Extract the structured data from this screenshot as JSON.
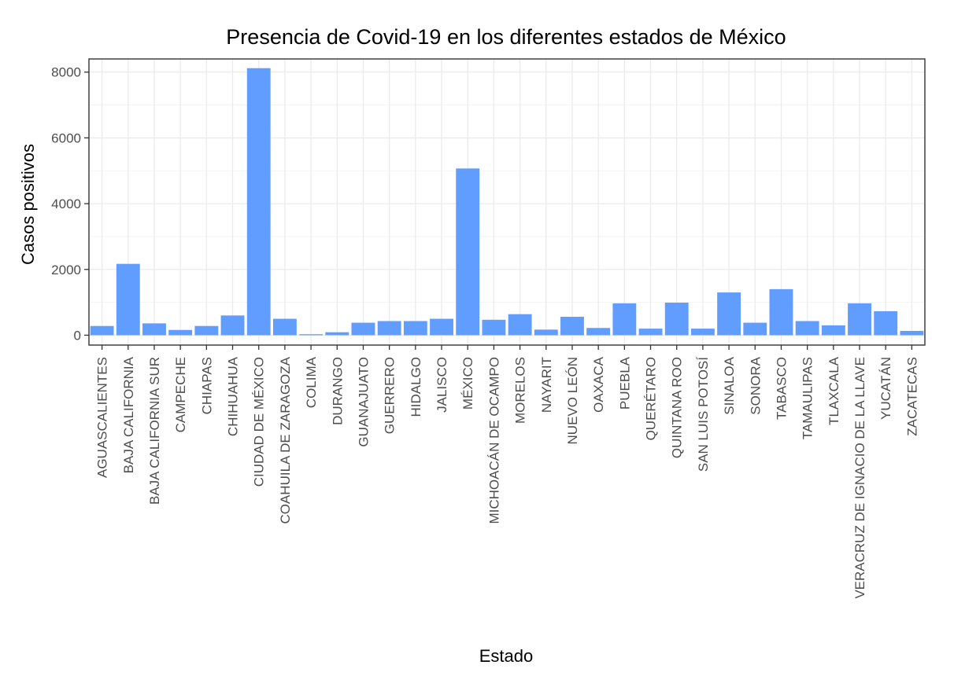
{
  "chart_data": {
    "type": "bar",
    "title": "Presencia de Covid-19 en los diferentes estados de México",
    "xlabel": "Estado",
    "ylabel": "Casos positivos",
    "ylim": [
      -300,
      8400
    ],
    "yticks": [
      0,
      2000,
      4000,
      6000,
      8000
    ],
    "grid": true,
    "bar_color": "#619CFF",
    "categories": [
      "AGUASCALIENTES",
      "BAJA CALIFORNIA",
      "BAJA CALIFORNIA SUR",
      "CAMPECHE",
      "CHIAPAS",
      "CHIHUAHUA",
      "CIUDAD DE MÉXICO",
      "COAHUILA DE ZARAGOZA",
      "COLIMA",
      "DURANGO",
      "GUANAJUATO",
      "GUERRERO",
      "HIDALGO",
      "JALISCO",
      "MÉXICO",
      "MICHOACÁN DE OCAMPO",
      "MORELOS",
      "NAYARIT",
      "NUEVO LEÓN",
      "OAXACA",
      "PUEBLA",
      "QUERÉTARO",
      "QUINTANA ROO",
      "SAN LUIS POTOSÍ",
      "SINALOA",
      "SONORA",
      "TABASCO",
      "TAMAULIPAS",
      "TLAXCALA",
      "VERACRUZ DE IGNACIO DE LA LLAVE",
      "YUCATÁN",
      "ZACATECAS"
    ],
    "values": [
      280,
      2170,
      360,
      160,
      280,
      600,
      8120,
      500,
      30,
      90,
      380,
      430,
      430,
      500,
      5070,
      470,
      640,
      170,
      560,
      220,
      970,
      200,
      990,
      200,
      1300,
      380,
      1400,
      430,
      300,
      970,
      730,
      130
    ]
  }
}
